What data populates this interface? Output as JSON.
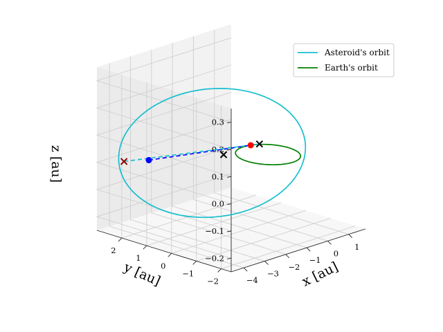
{
  "chart_data": {
    "type": "line3d",
    "title": "",
    "xlabel": "$x$ [au]",
    "ylabel": "$y$ [au]",
    "zlabel": "$z$ [au]",
    "xlabel_text": "x [au]",
    "ylabel_text": "y [au]",
    "zlabel_text": "z [au]",
    "xlim": [
      -4.6,
      1.8
    ],
    "ylim": [
      -2.4,
      3.0
    ],
    "zlim": [
      -0.25,
      0.35
    ],
    "xticks": [
      -4,
      -3,
      -2,
      -1,
      0,
      1
    ],
    "yticks": [
      -2,
      -1,
      0,
      1,
      2
    ],
    "zticks": [
      -0.2,
      -0.1,
      0.0,
      0.1,
      0.2,
      0.3
    ],
    "xtick_labels": [
      "−4",
      "−3",
      "−2",
      "−1",
      "0",
      "1"
    ],
    "ytick_labels": [
      "−2",
      "−1",
      "0",
      "1",
      "2"
    ],
    "ztick_labels": [
      "−0.2",
      "−0.1",
      "0.0",
      "0.1",
      "0.2",
      "0.3"
    ],
    "grid": true,
    "legend_position": "top-right",
    "series": [
      {
        "name": "Asteroid's orbit",
        "color": "#17becf",
        "kind": "orbit",
        "center": [
          -1.6,
          0.9,
          0.02
        ],
        "semi_major": 2.9,
        "semi_minor": 1.55,
        "major_axis_dir": [
          0.55,
          -0.83,
          0.09
        ],
        "minor_axis_dir": [
          0.33,
          0.18,
          0.93
        ],
        "points": 180
      },
      {
        "name": "Earth's orbit",
        "color": "#008000",
        "kind": "orbit",
        "center": [
          0.0,
          0.0,
          0.0
        ],
        "semi_major": 1.0,
        "semi_minor": 1.0,
        "major_axis_dir": [
          1,
          0,
          0
        ],
        "minor_axis_dir": [
          0,
          1,
          0
        ],
        "points": 180
      }
    ],
    "points": [
      {
        "name": "asteroid-position",
        "xyz": [
          -2.6,
          2.6,
          -0.03
        ],
        "color": "#0000ff",
        "marker": "circle"
      },
      {
        "name": "earth-position",
        "xyz": [
          0.3,
          0.95,
          0.0
        ],
        "color": "#ff0000",
        "marker": "circle"
      },
      {
        "name": "center-marker",
        "xyz": [
          -1.05,
          0.9,
          0.0
        ],
        "color": "#000000",
        "marker": "x"
      },
      {
        "name": "earth-node-marker",
        "xyz": [
          0.6,
          0.85,
          0.0
        ],
        "color": "#000000",
        "marker": "x"
      },
      {
        "name": "far-node-marker",
        "xyz": [
          -3.9,
          2.5,
          0.0
        ],
        "color": "#8b0000",
        "marker": "x"
      }
    ],
    "lines": [
      {
        "name": "asteroid-earth-line",
        "from": [
          -2.6,
          2.6,
          -0.03
        ],
        "to": [
          0.3,
          0.95,
          0.0
        ],
        "color": "#0000ff",
        "style": "dashed"
      },
      {
        "name": "node-line",
        "from": [
          -3.9,
          2.5,
          0.0
        ],
        "to": [
          0.6,
          0.85,
          0.0
        ],
        "color": "#17becf",
        "style": "dashed"
      }
    ]
  }
}
